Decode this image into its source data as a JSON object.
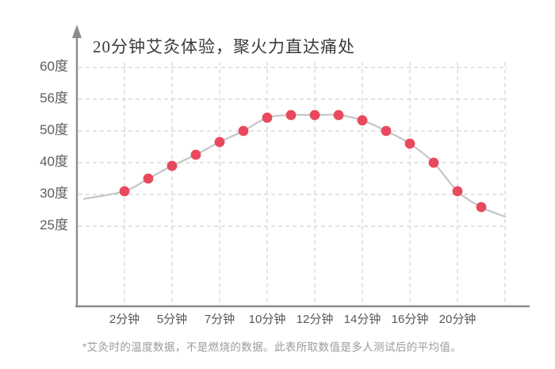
{
  "chart_data": {
    "type": "line",
    "title": "20分钟艾灸体验，聚火力直达痛处",
    "footnote": "*艾灸时的温度数据，不是燃烧的数据。此表所取数值是多人测试后的平均值。",
    "grid": true,
    "legend_position": "none",
    "y_axis": {
      "unit": "度",
      "ticks": [
        {
          "label": "60度",
          "value": 60
        },
        {
          "label": "56度",
          "value": 56
        },
        {
          "label": "50度",
          "value": 50
        },
        {
          "label": "40度",
          "value": 40
        },
        {
          "label": "30度",
          "value": 30
        },
        {
          "label": "25度",
          "value": 25
        }
      ]
    },
    "x_axis": {
      "unit": "分钟",
      "ticks": [
        "2分钟",
        "5分钟",
        "7分钟",
        "10分钟",
        "12分钟",
        "14分钟",
        "16分钟",
        "20分钟"
      ],
      "gridline_count": 9
    },
    "series": [
      {
        "points": [
          {
            "t": 0,
            "temp": 31
          },
          {
            "t": 0.5,
            "temp": 35
          },
          {
            "t": 1,
            "temp": 39
          },
          {
            "t": 1.5,
            "temp": 42.5
          },
          {
            "t": 2,
            "temp": 46.5
          },
          {
            "t": 2.5,
            "temp": 50
          },
          {
            "t": 3,
            "temp": 52.5
          },
          {
            "t": 3.5,
            "temp": 53
          },
          {
            "t": 4,
            "temp": 53
          },
          {
            "t": 4.5,
            "temp": 53
          },
          {
            "t": 5,
            "temp": 52
          },
          {
            "t": 5.5,
            "temp": 50
          },
          {
            "t": 6,
            "temp": 46
          },
          {
            "t": 6.5,
            "temp": 40
          },
          {
            "t": 7,
            "temp": 31
          },
          {
            "t": 7.5,
            "temp": 28
          }
        ],
        "curve_start": {
          "t": -0.85,
          "temp": 29.3
        },
        "curve_end": {
          "t": 8,
          "temp": 26.5
        }
      }
    ],
    "colors": {
      "dot": "#e8495c",
      "curve": "#c5c5c5",
      "grid": "#d2d2d2",
      "axis": "#8c8c8c"
    }
  }
}
